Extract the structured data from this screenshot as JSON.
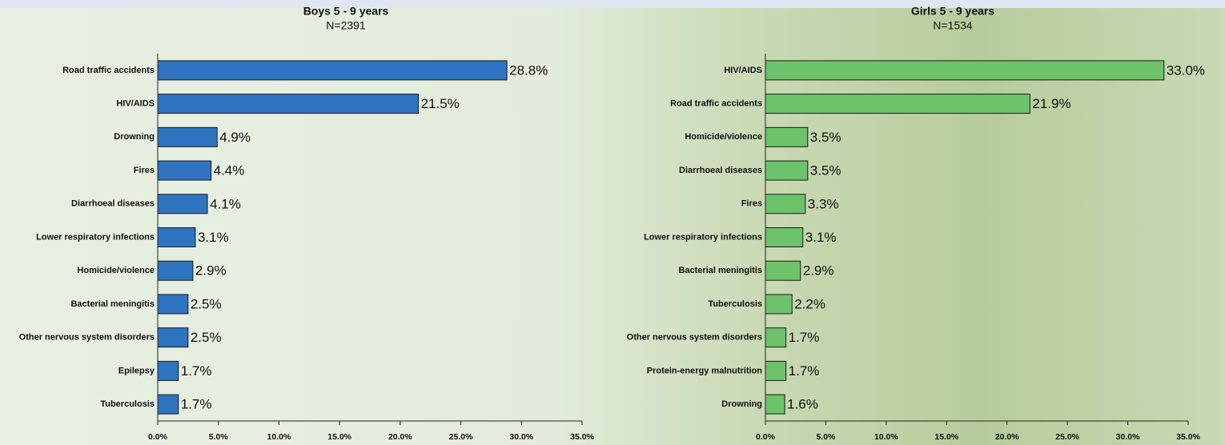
{
  "chart_data": [
    {
      "type": "bar",
      "orientation": "horizontal",
      "title": "Boys 5 - 9 years",
      "subtitle": "N=2391",
      "categories": [
        "Road traffic accidents",
        "HIV/AIDS",
        "Drowning",
        "Fires",
        "Diarrhoeal diseases",
        "Lower respiratory infections",
        "Homicide/violence",
        "Bacterial meningitis",
        "Other nervous system disorders",
        "Epilepsy",
        "Tuberculosis"
      ],
      "values": [
        28.8,
        21.5,
        4.9,
        4.4,
        4.1,
        3.1,
        2.9,
        2.5,
        2.5,
        1.7,
        1.7
      ],
      "value_labels": [
        "28.8%",
        "21.5%",
        "4.9%",
        "4.4%",
        "4.1%",
        "3.1%",
        "2.9%",
        "2.5%",
        "2.5%",
        "1.7%",
        "1.7%"
      ],
      "color": "#2e74c0",
      "xlim": [
        0,
        35
      ],
      "xticks": [
        {
          "value": 0,
          "label": "0.0%"
        },
        {
          "value": 5,
          "label": "5.0%"
        },
        {
          "value": 10,
          "label": "10.0%"
        },
        {
          "value": 15,
          "label": "15.0%"
        },
        {
          "value": 20,
          "label": "20.0%"
        },
        {
          "value": 25,
          "label": "25.0%"
        },
        {
          "value": 30,
          "label": "30.0%"
        },
        {
          "value": 35,
          "label": "35.0%"
        }
      ]
    },
    {
      "type": "bar",
      "orientation": "horizontal",
      "title": "Girls 5 - 9 years",
      "subtitle": "N=1534",
      "categories": [
        "HIV/AIDS",
        "Road traffic accidents",
        "Homicide/violence",
        "Diarrhoeal diseases",
        "Fires",
        "Lower respiratory infections",
        "Bacterial meningitis",
        "Tuberculosis",
        "Other nervous system disorders",
        "Protein-energy malnutrition",
        "Drowning"
      ],
      "values": [
        33.0,
        21.9,
        3.5,
        3.5,
        3.3,
        3.1,
        2.9,
        2.2,
        1.7,
        1.7,
        1.6
      ],
      "value_labels": [
        "33.0%",
        "21.9%",
        "3.5%",
        "3.5%",
        "3.3%",
        "3.1%",
        "2.9%",
        "2.2%",
        "1.7%",
        "1.7%",
        "1.6%"
      ],
      "color": "#6cc36a",
      "xlim": [
        0,
        35
      ],
      "xticks": [
        {
          "value": 0,
          "label": "0.0%"
        },
        {
          "value": 5,
          "label": "5.0%"
        },
        {
          "value": 10,
          "label": "10.0%"
        },
        {
          "value": 15,
          "label": "15.0%"
        },
        {
          "value": 20,
          "label": "20.0%"
        },
        {
          "value": 25,
          "label": "25.0%"
        },
        {
          "value": 30,
          "label": "30.0%"
        },
        {
          "value": 35,
          "label": "35.0%"
        }
      ]
    }
  ]
}
